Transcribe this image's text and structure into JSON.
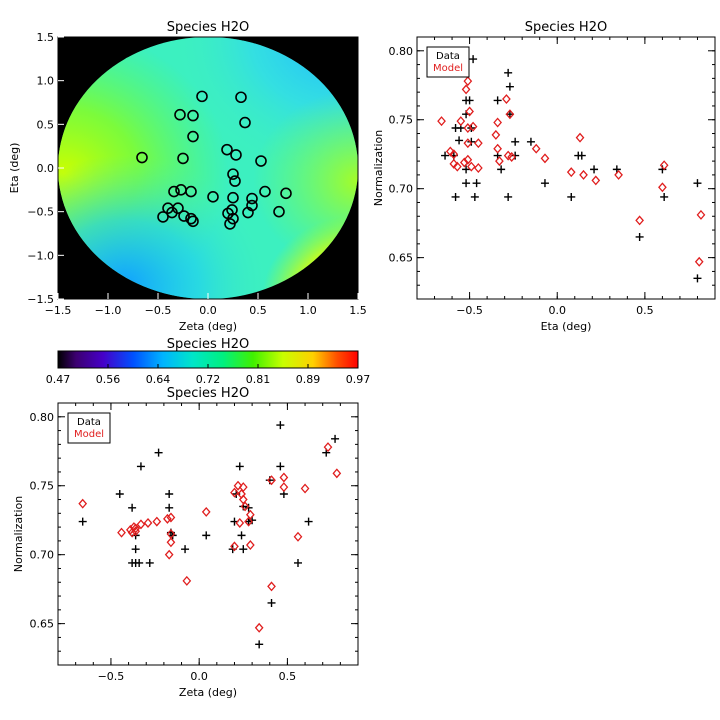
{
  "chart_data": [
    {
      "type": "heatmap",
      "title": "Species H2O",
      "xlabel": "Zeta (deg)",
      "ylabel": "Eta (deg)",
      "xlim": [
        -1.5,
        1.5
      ],
      "ylim": [
        -1.5,
        1.5
      ],
      "xticks": [
        "−1.5",
        "−1.0",
        "−0.5",
        "0.0",
        "0.5",
        "1.0",
        "1.5"
      ],
      "yticks": [
        "−1.5",
        "−1.0",
        "−0.5",
        "0.0",
        "0.5",
        "1.0",
        "1.5"
      ],
      "field_mask": "circle radius 1.5 deg, black outside",
      "stations": [
        {
          "x": -0.66,
          "y": 0.12
        },
        {
          "x": -0.45,
          "y": -0.56
        },
        {
          "x": -0.4,
          "y": -0.46
        },
        {
          "x": -0.36,
          "y": -0.51
        },
        {
          "x": -0.34,
          "y": -0.27
        },
        {
          "x": -0.3,
          "y": -0.46
        },
        {
          "x": -0.27,
          "y": -0.25
        },
        {
          "x": -0.24,
          "y": -0.55
        },
        {
          "x": -0.28,
          "y": 0.61
        },
        {
          "x": -0.25,
          "y": 0.11
        },
        {
          "x": -0.17,
          "y": -0.27
        },
        {
          "x": -0.17,
          "y": -0.58
        },
        {
          "x": -0.15,
          "y": -0.61
        },
        {
          "x": -0.15,
          "y": 0.36
        },
        {
          "x": -0.15,
          "y": 0.6
        },
        {
          "x": -0.06,
          "y": 0.82
        },
        {
          "x": 0.05,
          "y": -0.33
        },
        {
          "x": 0.19,
          "y": 0.21
        },
        {
          "x": 0.2,
          "y": -0.52
        },
        {
          "x": 0.22,
          "y": -0.64
        },
        {
          "x": 0.24,
          "y": -0.48
        },
        {
          "x": 0.25,
          "y": -0.58
        },
        {
          "x": 0.25,
          "y": -0.34
        },
        {
          "x": 0.25,
          "y": -0.07
        },
        {
          "x": 0.27,
          "y": -0.15
        },
        {
          "x": 0.28,
          "y": 0.15
        },
        {
          "x": 0.33,
          "y": 0.81
        },
        {
          "x": 0.37,
          "y": 0.52
        },
        {
          "x": 0.4,
          "y": -0.51
        },
        {
          "x": 0.44,
          "y": -0.35
        },
        {
          "x": 0.44,
          "y": -0.43
        },
        {
          "x": 0.53,
          "y": 0.08
        },
        {
          "x": 0.57,
          "y": -0.27
        },
        {
          "x": 0.71,
          "y": -0.5
        },
        {
          "x": 0.78,
          "y": -0.29
        }
      ],
      "colorbar": {
        "title": "Species H2O",
        "ticks": [
          "0.47",
          "0.56",
          "0.64",
          "0.72",
          "0.81",
          "0.89",
          "0.97"
        ],
        "range": [
          0.47,
          0.97
        ]
      }
    },
    {
      "type": "scatter",
      "title": "Species H2O",
      "xlabel": "Eta (deg)",
      "ylabel": "Normalization",
      "xlim": [
        -0.8,
        0.9
      ],
      "ylim": [
        0.62,
        0.81
      ],
      "xticks": [
        {
          "v": -0.5,
          "label": "−0.5"
        },
        {
          "v": 0.0,
          "label": "0.0"
        },
        {
          "v": 0.5,
          "label": "0.5"
        }
      ],
      "yticks": [
        {
          "v": 0.65,
          "label": "0.65"
        },
        {
          "v": 0.7,
          "label": "0.70"
        },
        {
          "v": 0.75,
          "label": "0.75"
        },
        {
          "v": 0.8,
          "label": "0.80"
        }
      ],
      "legend": {
        "position": "top-left",
        "items": [
          {
            "label": "Data",
            "color": "#000000"
          },
          {
            "label": "Model",
            "color": "#e01e1e"
          }
        ]
      },
      "series": [
        {
          "marker": "plus",
          "color": "#000000",
          "points": [
            [
              -0.48,
              0.794
            ],
            [
              -0.28,
              0.784
            ],
            [
              -0.27,
              0.774
            ],
            [
              -0.52,
              0.764
            ],
            [
              -0.5,
              0.764
            ],
            [
              -0.34,
              0.764
            ],
            [
              -0.52,
              0.754
            ],
            [
              -0.27,
              0.754
            ],
            [
              -0.58,
              0.744
            ],
            [
              -0.55,
              0.744
            ],
            [
              -0.49,
              0.744
            ],
            [
              -0.56,
              0.735
            ],
            [
              -0.24,
              0.734
            ],
            [
              -0.49,
              0.734
            ],
            [
              -0.15,
              0.734
            ],
            [
              -0.64,
              0.724
            ],
            [
              -0.59,
              0.724
            ],
            [
              -0.34,
              0.724
            ],
            [
              -0.24,
              0.724
            ],
            [
              0.12,
              0.724
            ],
            [
              0.14,
              0.724
            ],
            [
              0.6,
              0.714
            ],
            [
              0.34,
              0.714
            ],
            [
              0.21,
              0.714
            ],
            [
              -0.52,
              0.714
            ],
            [
              -0.32,
              0.714
            ],
            [
              -0.52,
              0.704
            ],
            [
              -0.46,
              0.704
            ],
            [
              -0.07,
              0.704
            ],
            [
              0.8,
              0.704
            ],
            [
              -0.58,
              0.694
            ],
            [
              -0.47,
              0.694
            ],
            [
              -0.28,
              0.694
            ],
            [
              0.08,
              0.694
            ],
            [
              0.61,
              0.694
            ],
            [
              0.47,
              0.665
            ],
            [
              0.8,
              0.635
            ]
          ]
        },
        {
          "marker": "diamond",
          "color": "#e01e1e",
          "points": [
            [
              -0.51,
              0.778
            ],
            [
              -0.52,
              0.772
            ],
            [
              -0.29,
              0.765
            ],
            [
              -0.5,
              0.756
            ],
            [
              -0.27,
              0.754
            ],
            [
              -0.66,
              0.749
            ],
            [
              -0.55,
              0.749
            ],
            [
              -0.34,
              0.748
            ],
            [
              -0.51,
              0.744
            ],
            [
              -0.48,
              0.745
            ],
            [
              -0.35,
              0.739
            ],
            [
              -0.34,
              0.729
            ],
            [
              -0.12,
              0.729
            ],
            [
              0.13,
              0.737
            ],
            [
              -0.45,
              0.733
            ],
            [
              -0.51,
              0.733
            ],
            [
              -0.61,
              0.727
            ],
            [
              -0.59,
              0.725
            ],
            [
              -0.28,
              0.724
            ],
            [
              -0.26,
              0.723
            ],
            [
              -0.07,
              0.722
            ],
            [
              -0.33,
              0.72
            ],
            [
              -0.51,
              0.721
            ],
            [
              -0.53,
              0.719
            ],
            [
              -0.49,
              0.716
            ],
            [
              -0.57,
              0.716
            ],
            [
              -0.59,
              0.718
            ],
            [
              -0.45,
              0.715
            ],
            [
              0.08,
              0.712
            ],
            [
              0.15,
              0.71
            ],
            [
              0.22,
              0.706
            ],
            [
              0.35,
              0.71
            ],
            [
              0.61,
              0.717
            ],
            [
              0.6,
              0.701
            ],
            [
              0.47,
              0.677
            ],
            [
              0.82,
              0.681
            ],
            [
              0.81,
              0.647
            ]
          ]
        }
      ]
    },
    {
      "type": "scatter",
      "title": "Species H2O",
      "xlabel": "Zeta (deg)",
      "ylabel": "Normalization",
      "xlim": [
        -0.8,
        0.9
      ],
      "ylim": [
        0.62,
        0.81
      ],
      "xticks": [
        {
          "v": -0.5,
          "label": "−0.5"
        },
        {
          "v": 0.0,
          "label": "0.0"
        },
        {
          "v": 0.5,
          "label": "0.5"
        }
      ],
      "yticks": [
        {
          "v": 0.65,
          "label": "0.65"
        },
        {
          "v": 0.7,
          "label": "0.70"
        },
        {
          "v": 0.75,
          "label": "0.75"
        },
        {
          "v": 0.8,
          "label": "0.80"
        }
      ],
      "legend": {
        "position": "top-left",
        "items": [
          {
            "label": "Data",
            "color": "#000000"
          },
          {
            "label": "Model",
            "color": "#e01e1e"
          }
        ]
      },
      "series": [
        {
          "marker": "plus",
          "color": "#000000",
          "points": [
            [
              0.46,
              0.794
            ],
            [
              0.77,
              0.784
            ],
            [
              -0.23,
              0.774
            ],
            [
              0.72,
              0.774
            ],
            [
              -0.33,
              0.764
            ],
            [
              0.23,
              0.764
            ],
            [
              0.46,
              0.764
            ],
            [
              -0.45,
              0.744
            ],
            [
              -0.17,
              0.744
            ],
            [
              0.21,
              0.744
            ],
            [
              0.4,
              0.754
            ],
            [
              0.28,
              0.734
            ],
            [
              -0.17,
              0.734
            ],
            [
              0.48,
              0.744
            ],
            [
              -0.66,
              0.724
            ],
            [
              0.2,
              0.724
            ],
            [
              0.28,
              0.724
            ],
            [
              0.62,
              0.724
            ],
            [
              -0.36,
              0.714
            ],
            [
              -0.15,
              0.714
            ],
            [
              0.04,
              0.714
            ],
            [
              0.24,
              0.714
            ],
            [
              -0.36,
              0.704
            ],
            [
              -0.08,
              0.704
            ],
            [
              0.19,
              0.704
            ],
            [
              0.25,
              0.704
            ],
            [
              -0.38,
              0.694
            ],
            [
              -0.36,
              0.694
            ],
            [
              -0.34,
              0.694
            ],
            [
              -0.28,
              0.694
            ],
            [
              0.56,
              0.694
            ],
            [
              0.41,
              0.665
            ],
            [
              0.34,
              0.635
            ],
            [
              -0.38,
              0.734
            ],
            [
              -0.16,
              0.716
            ],
            [
              0.25,
              0.735
            ],
            [
              0.3,
              0.725
            ]
          ]
        },
        {
          "marker": "diamond",
          "color": "#e01e1e",
          "points": [
            [
              0.73,
              0.778
            ],
            [
              0.78,
              0.759
            ],
            [
              0.48,
              0.756
            ],
            [
              0.41,
              0.754
            ],
            [
              0.48,
              0.749
            ],
            [
              0.22,
              0.75
            ],
            [
              0.25,
              0.749
            ],
            [
              0.2,
              0.745
            ],
            [
              0.24,
              0.744
            ],
            [
              0.25,
              0.74
            ],
            [
              0.6,
              0.748
            ],
            [
              -0.66,
              0.737
            ],
            [
              0.04,
              0.731
            ],
            [
              0.29,
              0.729
            ],
            [
              0.28,
              0.724
            ],
            [
              -0.16,
              0.727
            ],
            [
              -0.18,
              0.726
            ],
            [
              -0.24,
              0.724
            ],
            [
              -0.29,
              0.723
            ],
            [
              -0.33,
              0.722
            ],
            [
              -0.37,
              0.72
            ],
            [
              -0.39,
              0.718
            ],
            [
              -0.36,
              0.717
            ],
            [
              -0.38,
              0.716
            ],
            [
              -0.44,
              0.716
            ],
            [
              -0.16,
              0.715
            ],
            [
              -0.16,
              0.709
            ],
            [
              0.56,
              0.713
            ],
            [
              0.2,
              0.706
            ],
            [
              0.29,
              0.707
            ],
            [
              -0.17,
              0.7
            ],
            [
              -0.07,
              0.681
            ],
            [
              0.41,
              0.677
            ],
            [
              0.34,
              0.647
            ],
            [
              0.23,
              0.723
            ],
            [
              -0.36,
              0.719
            ],
            [
              0.26,
              0.735
            ]
          ]
        }
      ]
    }
  ]
}
